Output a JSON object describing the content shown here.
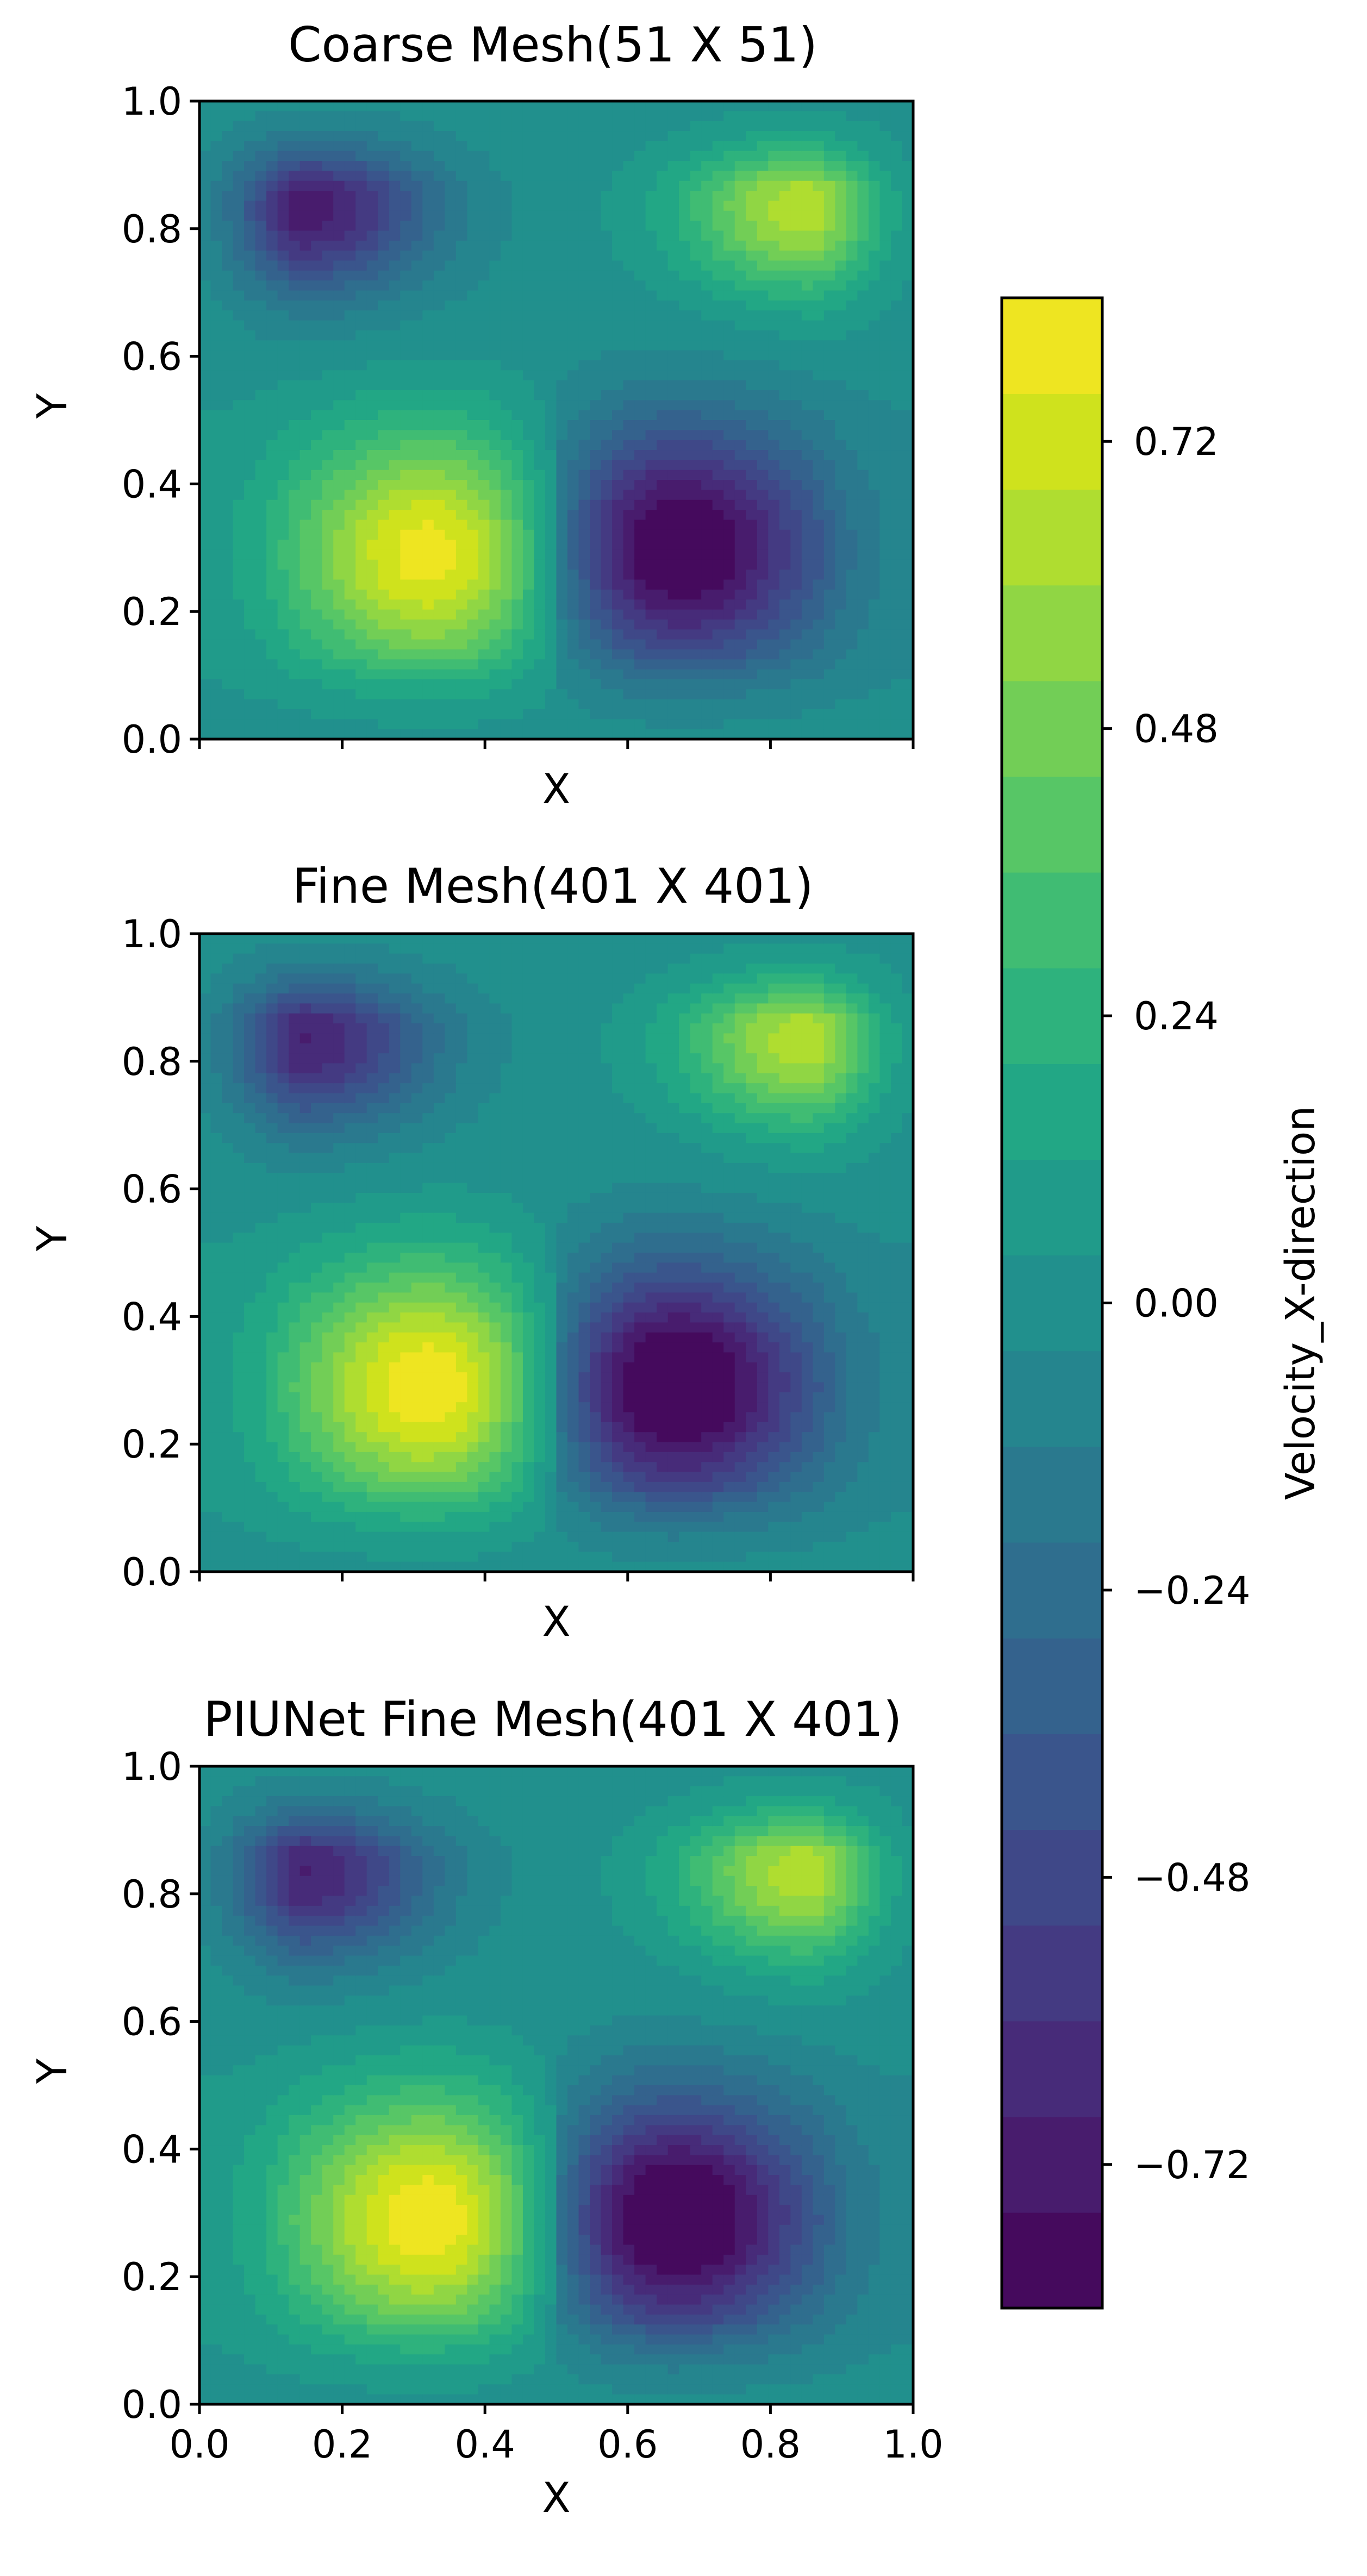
{
  "chart_data": [
    {
      "type": "heatmap",
      "title": "Coarse Mesh(51 X 51)",
      "xlabel": "X",
      "ylabel": "Y",
      "xlim": [
        0.0,
        1.0
      ],
      "ylim": [
        0.0,
        1.0
      ],
      "yticks": [
        "0.0",
        "0.2",
        "0.4",
        "0.6",
        "0.8",
        "1.0"
      ],
      "xticks": [
        "0.0",
        "0.2",
        "0.4",
        "0.6",
        "0.8",
        "1.0"
      ],
      "show_xticklabels": false,
      "field_extrema": [
        {
          "x": 0.15,
          "y": 0.83,
          "value": -0.66
        },
        {
          "x": 0.85,
          "y": 0.83,
          "value": 0.6
        },
        {
          "x": 0.34,
          "y": 0.29,
          "value": 0.68
        },
        {
          "x": 0.66,
          "y": 0.3,
          "value": -0.76
        }
      ],
      "discontinuity_x": 0.5
    },
    {
      "type": "heatmap",
      "title": "Fine Mesh(401 X 401)",
      "xlabel": "X",
      "ylabel": "Y",
      "xlim": [
        0.0,
        1.0
      ],
      "ylim": [
        0.0,
        1.0
      ],
      "yticks": [
        "0.0",
        "0.2",
        "0.4",
        "0.6",
        "0.8",
        "1.0"
      ],
      "xticks": [
        "0.0",
        "0.2",
        "0.4",
        "0.6",
        "0.8",
        "1.0"
      ],
      "show_xticklabels": false,
      "field_extrema": [
        {
          "x": 0.15,
          "y": 0.83,
          "value": -0.62
        },
        {
          "x": 0.85,
          "y": 0.83,
          "value": 0.6
        },
        {
          "x": 0.34,
          "y": 0.29,
          "value": 0.72
        },
        {
          "x": 0.65,
          "y": 0.29,
          "value": -0.8
        }
      ],
      "discontinuity_x": 0.5
    },
    {
      "type": "heatmap",
      "title": "PIUNet Fine Mesh(401 X 401)",
      "xlabel": "X",
      "ylabel": "Y",
      "xlim": [
        0.0,
        1.0
      ],
      "ylim": [
        0.0,
        1.0
      ],
      "yticks": [
        "0.0",
        "0.2",
        "0.4",
        "0.6",
        "0.8",
        "1.0"
      ],
      "xticks": [
        "0.0",
        "0.2",
        "0.4",
        "0.6",
        "0.8",
        "1.0"
      ],
      "show_xticklabels": true,
      "field_extrema": [
        {
          "x": 0.15,
          "y": 0.83,
          "value": -0.62
        },
        {
          "x": 0.85,
          "y": 0.83,
          "value": 0.6
        },
        {
          "x": 0.34,
          "y": 0.29,
          "value": 0.72
        },
        {
          "x": 0.65,
          "y": 0.29,
          "value": -0.8
        }
      ],
      "discontinuity_x": 0.5
    }
  ],
  "colorbar": {
    "label": "Velocity_X-direction",
    "range": [
      -0.84,
      0.84
    ],
    "levels": [
      -0.84,
      -0.76,
      -0.68,
      -0.6,
      -0.52,
      -0.44,
      -0.36,
      -0.28,
      -0.2,
      -0.12,
      -0.04,
      0.04,
      0.12,
      0.2,
      0.28,
      0.36,
      0.44,
      0.52,
      0.6,
      0.68,
      0.76,
      0.84
    ],
    "ticks": [
      -0.72,
      -0.48,
      -0.24,
      0.0,
      0.24,
      0.48,
      0.72
    ],
    "tick_labels": [
      "−0.72",
      "−0.48",
      "−0.24",
      "0.00",
      "0.24",
      "0.48",
      "0.72"
    ],
    "colormap": "viridis",
    "colors": [
      "#440154",
      "#481a6c",
      "#472f7d",
      "#414487",
      "#39568c",
      "#31688e",
      "#2a788e",
      "#23888e",
      "#1f988b",
      "#22a884",
      "#35b779",
      "#54c568",
      "#7ad151",
      "#a5db36",
      "#d2e21b",
      "#fde725"
    ]
  }
}
